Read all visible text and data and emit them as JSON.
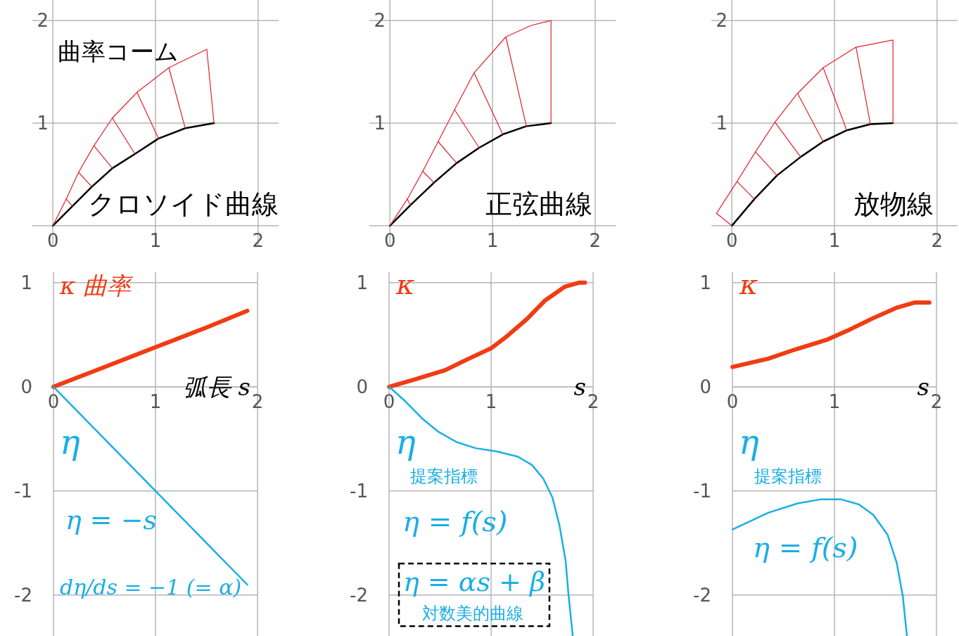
{
  "chart_data": [
    {
      "type": "line",
      "xlim": [
        -0.2,
        2.2
      ],
      "ylim": [
        -0.2,
        2.2
      ],
      "xticks": [
        0,
        1,
        2
      ],
      "yticks": [
        1,
        2
      ],
      "grid": true,
      "series": [
        {
          "name": "クロソイド曲線",
          "color": "#000000",
          "x": [
            0,
            0.19,
            0.38,
            0.58,
            0.8,
            1.03,
            1.29,
            1.57
          ],
          "values": [
            0,
            0.19,
            0.38,
            0.56,
            0.7,
            0.85,
            0.95,
            1.0
          ]
        },
        {
          "name": "曲率コーム",
          "color": "#e0202a",
          "x": [
            0,
            0.13,
            0.25,
            0.4,
            0.58,
            0.82,
            1.13,
            1.5,
            1.57
          ],
          "values": [
            0,
            0.26,
            0.52,
            0.78,
            1.05,
            1.3,
            1.54,
            1.72,
            1.0
          ]
        },
        {
          "color": "#e0202a",
          "x": [
            0.19,
            0.13,
            null,
            0.38,
            0.25,
            null,
            0.58,
            0.4,
            null,
            0.8,
            0.58,
            null,
            1.03,
            0.82,
            null,
            1.29,
            1.13
          ],
          "values": [
            0.19,
            0.26,
            null,
            0.38,
            0.52,
            null,
            0.56,
            0.78,
            null,
            0.7,
            1.05,
            null,
            0.85,
            1.3,
            null,
            0.95,
            1.54
          ]
        }
      ]
    },
    {
      "type": "line",
      "xlim": [
        -0.2,
        2.2
      ],
      "ylim": [
        -0.2,
        2.2
      ],
      "xticks": [
        0,
        1,
        2
      ],
      "yticks": [
        1,
        2
      ],
      "grid": true,
      "series": [
        {
          "name": "正弦曲線",
          "color": "#000000",
          "x": [
            0,
            0.2,
            0.43,
            0.65,
            0.87,
            1.1,
            1.33,
            1.57
          ],
          "values": [
            0,
            0.2,
            0.42,
            0.61,
            0.76,
            0.89,
            0.97,
            1.0
          ]
        },
        {
          "color": "#e0202a",
          "x": [
            0,
            0.17,
            0.32,
            0.47,
            0.63,
            0.82,
            1.13,
            1.37,
            1.57,
            1.57
          ],
          "values": [
            0,
            0.26,
            0.53,
            0.82,
            1.13,
            1.49,
            1.84,
            1.95,
            2.0,
            1.0
          ]
        },
        {
          "color": "#e0202a",
          "x": [
            0.2,
            0.17,
            null,
            0.43,
            0.32,
            null,
            0.65,
            0.47,
            null,
            0.87,
            0.63,
            null,
            1.1,
            0.82,
            null,
            1.33,
            1.13
          ],
          "values": [
            0.2,
            0.26,
            null,
            0.42,
            0.53,
            null,
            0.61,
            0.82,
            null,
            0.76,
            1.13,
            null,
            0.89,
            1.49,
            null,
            0.97,
            1.84
          ]
        }
      ]
    },
    {
      "type": "line",
      "xlim": [
        -0.2,
        2.2
      ],
      "ylim": [
        -0.2,
        2.2
      ],
      "xticks": [
        0,
        1,
        2
      ],
      "yticks": [
        1,
        2
      ],
      "grid": true,
      "series": [
        {
          "name": "放物線",
          "color": "#000000",
          "x": [
            0,
            0.22,
            0.44,
            0.67,
            0.89,
            1.12,
            1.35,
            1.57
          ],
          "values": [
            0,
            0.26,
            0.49,
            0.67,
            0.82,
            0.93,
            0.99,
            1.0
          ]
        },
        {
          "color": "#e0202a",
          "x": [
            0,
            -0.15,
            0.05,
            0.23,
            0.42,
            0.64,
            0.89,
            1.21,
            1.57,
            1.57
          ],
          "values": [
            0,
            0.12,
            0.43,
            0.72,
            1.01,
            1.29,
            1.54,
            1.74,
            1.81,
            1.0
          ]
        },
        {
          "color": "#e0202a",
          "x": [
            0.22,
            0.05,
            null,
            0.44,
            0.23,
            null,
            0.67,
            0.42,
            null,
            0.89,
            0.64,
            null,
            1.12,
            0.89,
            null,
            1.35,
            1.21
          ],
          "values": [
            0.26,
            0.43,
            null,
            0.49,
            0.72,
            null,
            0.67,
            1.01,
            null,
            0.82,
            1.29,
            null,
            0.93,
            1.54,
            null,
            0.99,
            1.74
          ]
        }
      ]
    },
    {
      "type": "line",
      "xlim": [
        0,
        2
      ],
      "ylim": [
        -2.4,
        1.1
      ],
      "xticks": [
        0,
        1,
        2
      ],
      "yticks": [
        -2,
        -1,
        0,
        1
      ],
      "grid": true,
      "xlabel": "弧長 s",
      "series": [
        {
          "name": "κ 曲率",
          "color": "#f03c14",
          "x": [
            0,
            0.5,
            1,
            1.5,
            1.9
          ],
          "values": [
            0,
            0.19,
            0.38,
            0.57,
            0.73
          ]
        },
        {
          "name": "η",
          "color": "#1aaee5",
          "x": [
            0,
            0.5,
            1,
            1.5,
            1.9
          ],
          "values": [
            0,
            -0.5,
            -1,
            -1.5,
            -1.9
          ]
        }
      ],
      "annotations": [
        "η = −s",
        "dη/ds = −1 (= α)"
      ]
    },
    {
      "type": "line",
      "xlim": [
        0,
        2
      ],
      "ylim": [
        -2.4,
        1.1
      ],
      "xticks": [
        0,
        1,
        2
      ],
      "yticks": [
        -2,
        -1,
        0,
        1
      ],
      "grid": true,
      "xlabel": "s",
      "series": [
        {
          "name": "κ",
          "color": "#f03c14",
          "x": [
            0,
            0.25,
            0.55,
            0.78,
            1.0,
            1.16,
            1.35,
            1.53,
            1.72,
            1.86,
            1.92
          ],
          "values": [
            0,
            0.07,
            0.16,
            0.27,
            0.37,
            0.49,
            0.65,
            0.83,
            0.96,
            1.0,
            1.0
          ]
        },
        {
          "name": "η",
          "color": "#1aaee5",
          "x": [
            0,
            0.16,
            0.32,
            0.48,
            0.66,
            0.85,
            1.05,
            1.26,
            1.4,
            1.51,
            1.6,
            1.67,
            1.73,
            1.76,
            1.8
          ],
          "values": [
            0,
            -0.14,
            -0.3,
            -0.43,
            -0.53,
            -0.59,
            -0.62,
            -0.67,
            -0.75,
            -0.88,
            -1.06,
            -1.33,
            -1.67,
            -2.01,
            -2.39
          ]
        }
      ],
      "annotations": [
        "提案指標",
        "η = f(s)",
        "η = αs + β",
        "対数美的曲線"
      ]
    },
    {
      "type": "line",
      "xlim": [
        0,
        2
      ],
      "ylim": [
        -2.4,
        1.1
      ],
      "xticks": [
        0,
        1,
        2
      ],
      "yticks": [
        -2,
        -1,
        0,
        1
      ],
      "grid": true,
      "xlabel": "s",
      "series": [
        {
          "name": "κ",
          "color": "#f03c14",
          "x": [
            0,
            0.35,
            0.62,
            0.92,
            1.15,
            1.38,
            1.61,
            1.79,
            1.93
          ],
          "values": [
            0.19,
            0.27,
            0.36,
            0.45,
            0.55,
            0.66,
            0.76,
            0.81,
            0.81
          ]
        },
        {
          "name": "η",
          "color": "#1aaee5",
          "x": [
            0,
            0.35,
            0.64,
            0.87,
            1.06,
            1.24,
            1.38,
            1.52,
            1.61,
            1.67,
            1.71
          ],
          "values": [
            -1.37,
            -1.21,
            -1.12,
            -1.08,
            -1.08,
            -1.13,
            -1.23,
            -1.42,
            -1.69,
            -2.01,
            -2.39
          ]
        }
      ],
      "annotations": [
        "提案指標",
        "η = f(s)"
      ]
    }
  ]
}
